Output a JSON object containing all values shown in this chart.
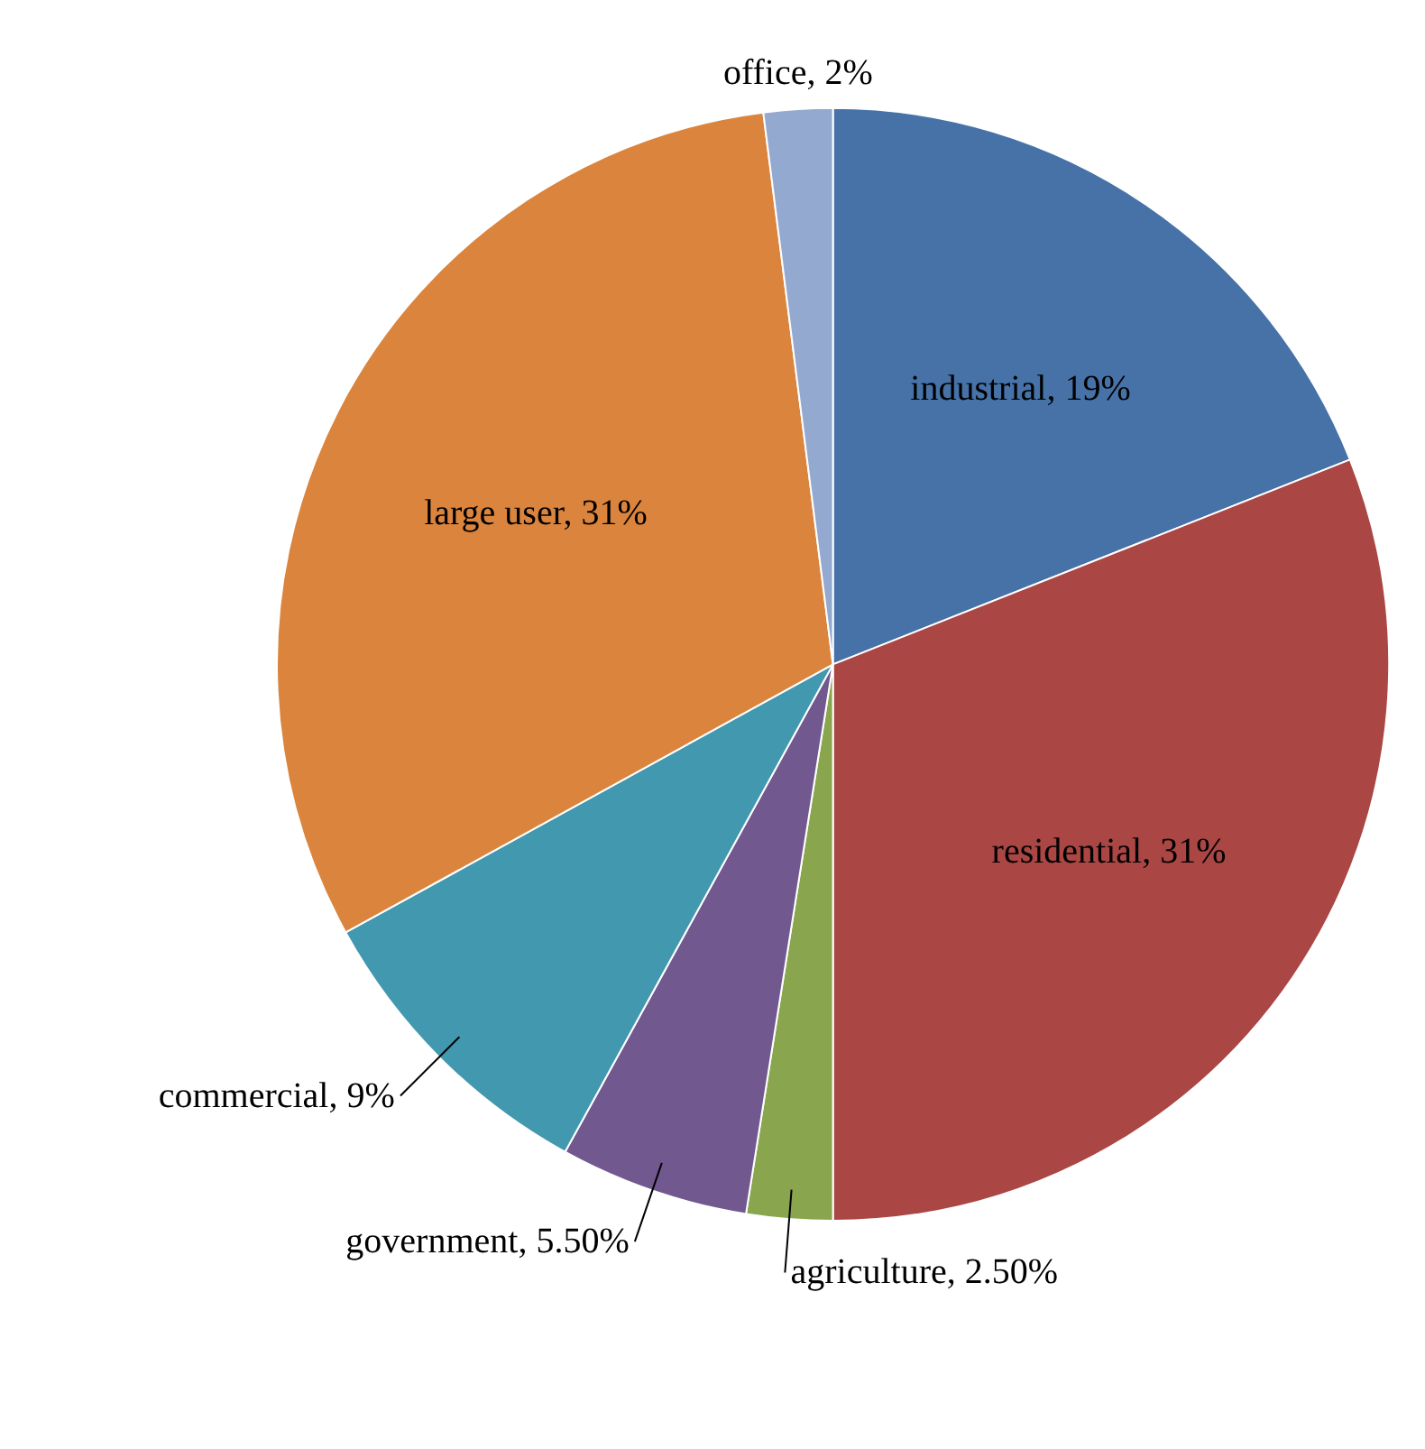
{
  "chart_data": {
    "type": "pie",
    "categories": [
      "industrial",
      "residential",
      "agriculture",
      "government",
      "commercial",
      "large user",
      "office"
    ],
    "values": [
      19,
      31,
      2.5,
      5.5,
      9,
      31,
      2
    ],
    "value_labels": [
      "19%",
      "31%",
      "2.50%",
      "5.50%",
      "9%",
      "31%",
      "2%"
    ],
    "colors": [
      "#4672a8",
      "#aa4644",
      "#89a54e",
      "#71588f",
      "#4198af",
      "#db843d",
      "#93a9cf"
    ],
    "data_labels": true
  }
}
